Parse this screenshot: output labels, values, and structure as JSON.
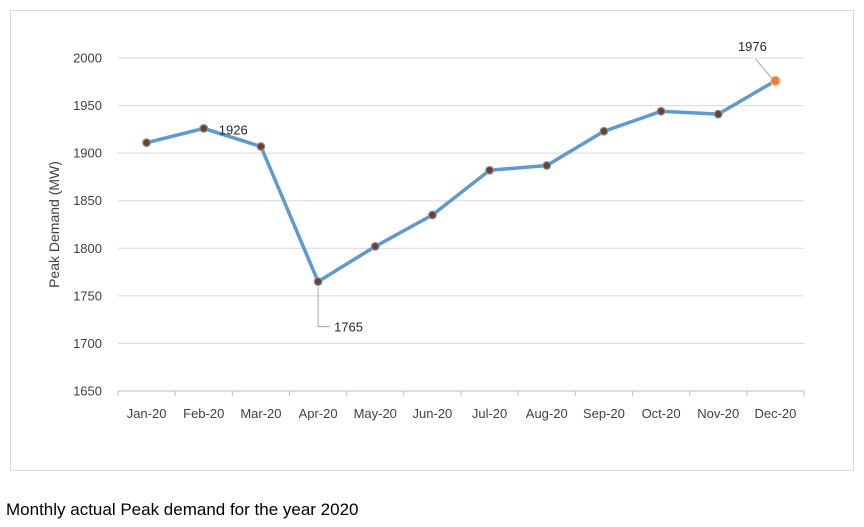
{
  "caption": "Monthly actual Peak demand for the year 2020",
  "chart_data": {
    "type": "line",
    "title": "",
    "xlabel": "",
    "ylabel": "Peak Demand (MW)",
    "ylim": [
      1650,
      2000
    ],
    "yticks": [
      1650,
      1700,
      1750,
      1800,
      1850,
      1900,
      1950,
      2000
    ],
    "grid": true,
    "legend": "none",
    "categories": [
      "Jan-20",
      "Feb-20",
      "Mar-20",
      "Apr-20",
      "May-20",
      "Jun-20",
      "Jul-20",
      "Aug-20",
      "Sep-20",
      "Oct-20",
      "Nov-20",
      "Dec-20"
    ],
    "series": [
      {
        "values": [
          1911,
          1926,
          1907,
          1765,
          1802,
          1835,
          1882,
          1887,
          1923,
          1944,
          1941,
          1976
        ],
        "color": "#5b9bd5"
      }
    ],
    "marker_color": "#843c0c",
    "highlight_marker_color": "#ed7d31",
    "data_labels": [
      {
        "category": "Feb-20",
        "text": "1926"
      },
      {
        "category": "Apr-20",
        "text": "1765"
      },
      {
        "category": "Dec-20",
        "text": "1976"
      }
    ]
  }
}
